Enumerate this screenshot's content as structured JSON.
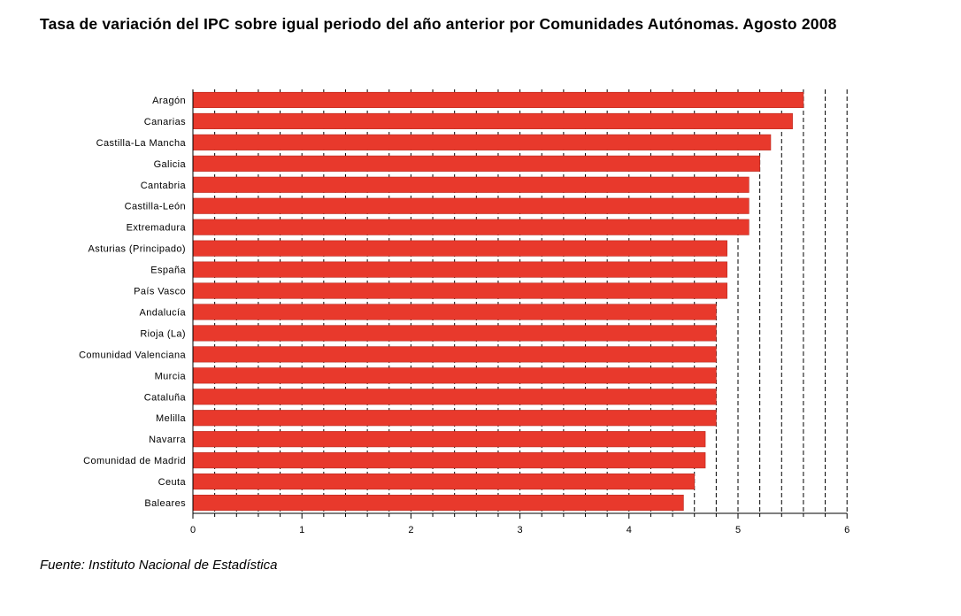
{
  "title": "Tasa de variación del IPC sobre igual periodo del año anterior por Comunidades Autónomas. Agosto 2008",
  "source": "Fuente: Instituto Nacional de Estadística",
  "colors": {
    "bar": "#e8392c",
    "bar_edge": "#b8281e",
    "axis": "#000000"
  },
  "chart_data": {
    "type": "bar",
    "orientation": "horizontal",
    "categories": [
      "Aragón",
      "Canarias",
      "Castilla-La Mancha",
      "Galicia",
      "Cantabria",
      "Castilla-León",
      "Extremadura",
      "Asturias (Principado)",
      "España",
      "País Vasco",
      "Andalucía",
      "Rioja (La)",
      "Comunidad Valenciana",
      "Murcia",
      "Cataluña",
      "Melilla",
      "Navarra",
      "Comunidad de Madrid",
      "Ceuta",
      "Baleares"
    ],
    "values": [
      5.6,
      5.5,
      5.3,
      5.2,
      5.1,
      5.1,
      5.1,
      4.9,
      4.9,
      4.9,
      4.8,
      4.8,
      4.8,
      4.8,
      4.8,
      4.8,
      4.7,
      4.7,
      4.6,
      4.5
    ],
    "xlim": [
      0,
      6
    ],
    "xticks": [
      "0",
      "1",
      "2",
      "3",
      "4",
      "5",
      "6"
    ],
    "grid": "vertical dashed"
  }
}
